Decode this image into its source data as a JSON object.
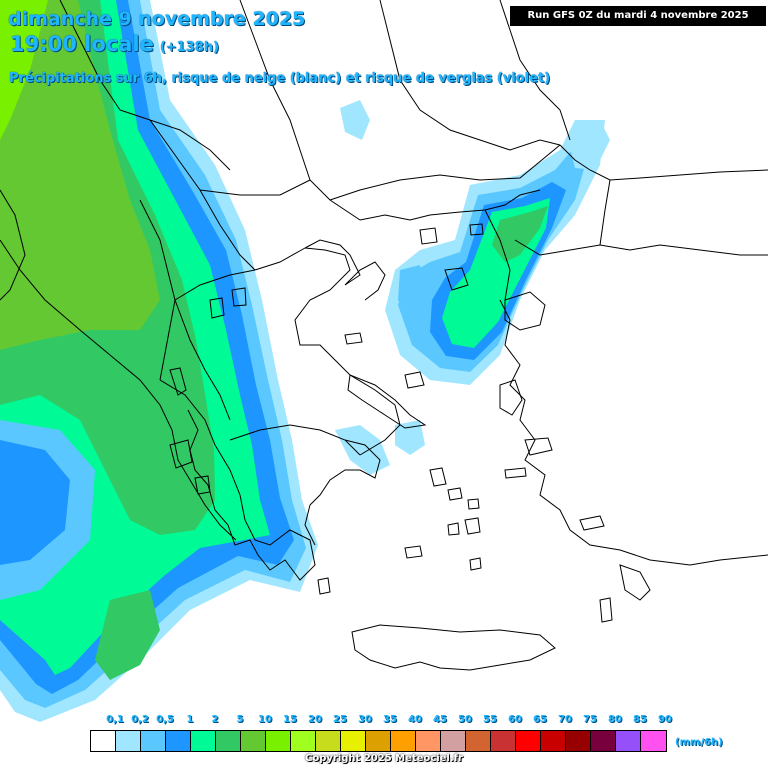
{
  "header": {
    "date": "dimanche 9 novembre 2025",
    "hour": "19:00 locale",
    "lead": "(+138h)",
    "subtitle": "Précipitations sur 6h, risque de neige (blanc) et risque de verglas (violet)",
    "run": "Run GFS 0Z du mardi 4 novembre 2025"
  },
  "legend": {
    "ticks": [
      "0,1",
      "0,2",
      "0,5",
      "1",
      "2",
      "5",
      "10",
      "15",
      "20",
      "25",
      "30",
      "35",
      "40",
      "45",
      "50",
      "55",
      "60",
      "65",
      "70",
      "75",
      "80",
      "85",
      "90"
    ],
    "unit": "(mm/6h)",
    "colors": [
      "#ffffff",
      "#a0e6ff",
      "#5ac8ff",
      "#1e96ff",
      "#00fa96",
      "#32c864",
      "#64c832",
      "#78f000",
      "#a0ff1e",
      "#c8dc1e",
      "#e6f000",
      "#dca000",
      "#ffa000",
      "#ff9664",
      "#d2a0a0",
      "#d26432",
      "#c83232",
      "#ff0000",
      "#c80000",
      "#960000",
      "#78003c",
      "#9650fa",
      "#ff50f0"
    ]
  },
  "colors": {
    "water": "#ffffff",
    "border": "#000000",
    "precip_light": "#a0e6ff",
    "precip_mid": "#5ac8ff",
    "precip_1": "#1e96ff",
    "precip_2": "#00fa96",
    "precip_5": "#32c864",
    "precip_10": "#64c832",
    "precip_15": "#78f000"
  },
  "footer": {
    "copyright": "Copyright 2025 Meteociel.fr"
  }
}
